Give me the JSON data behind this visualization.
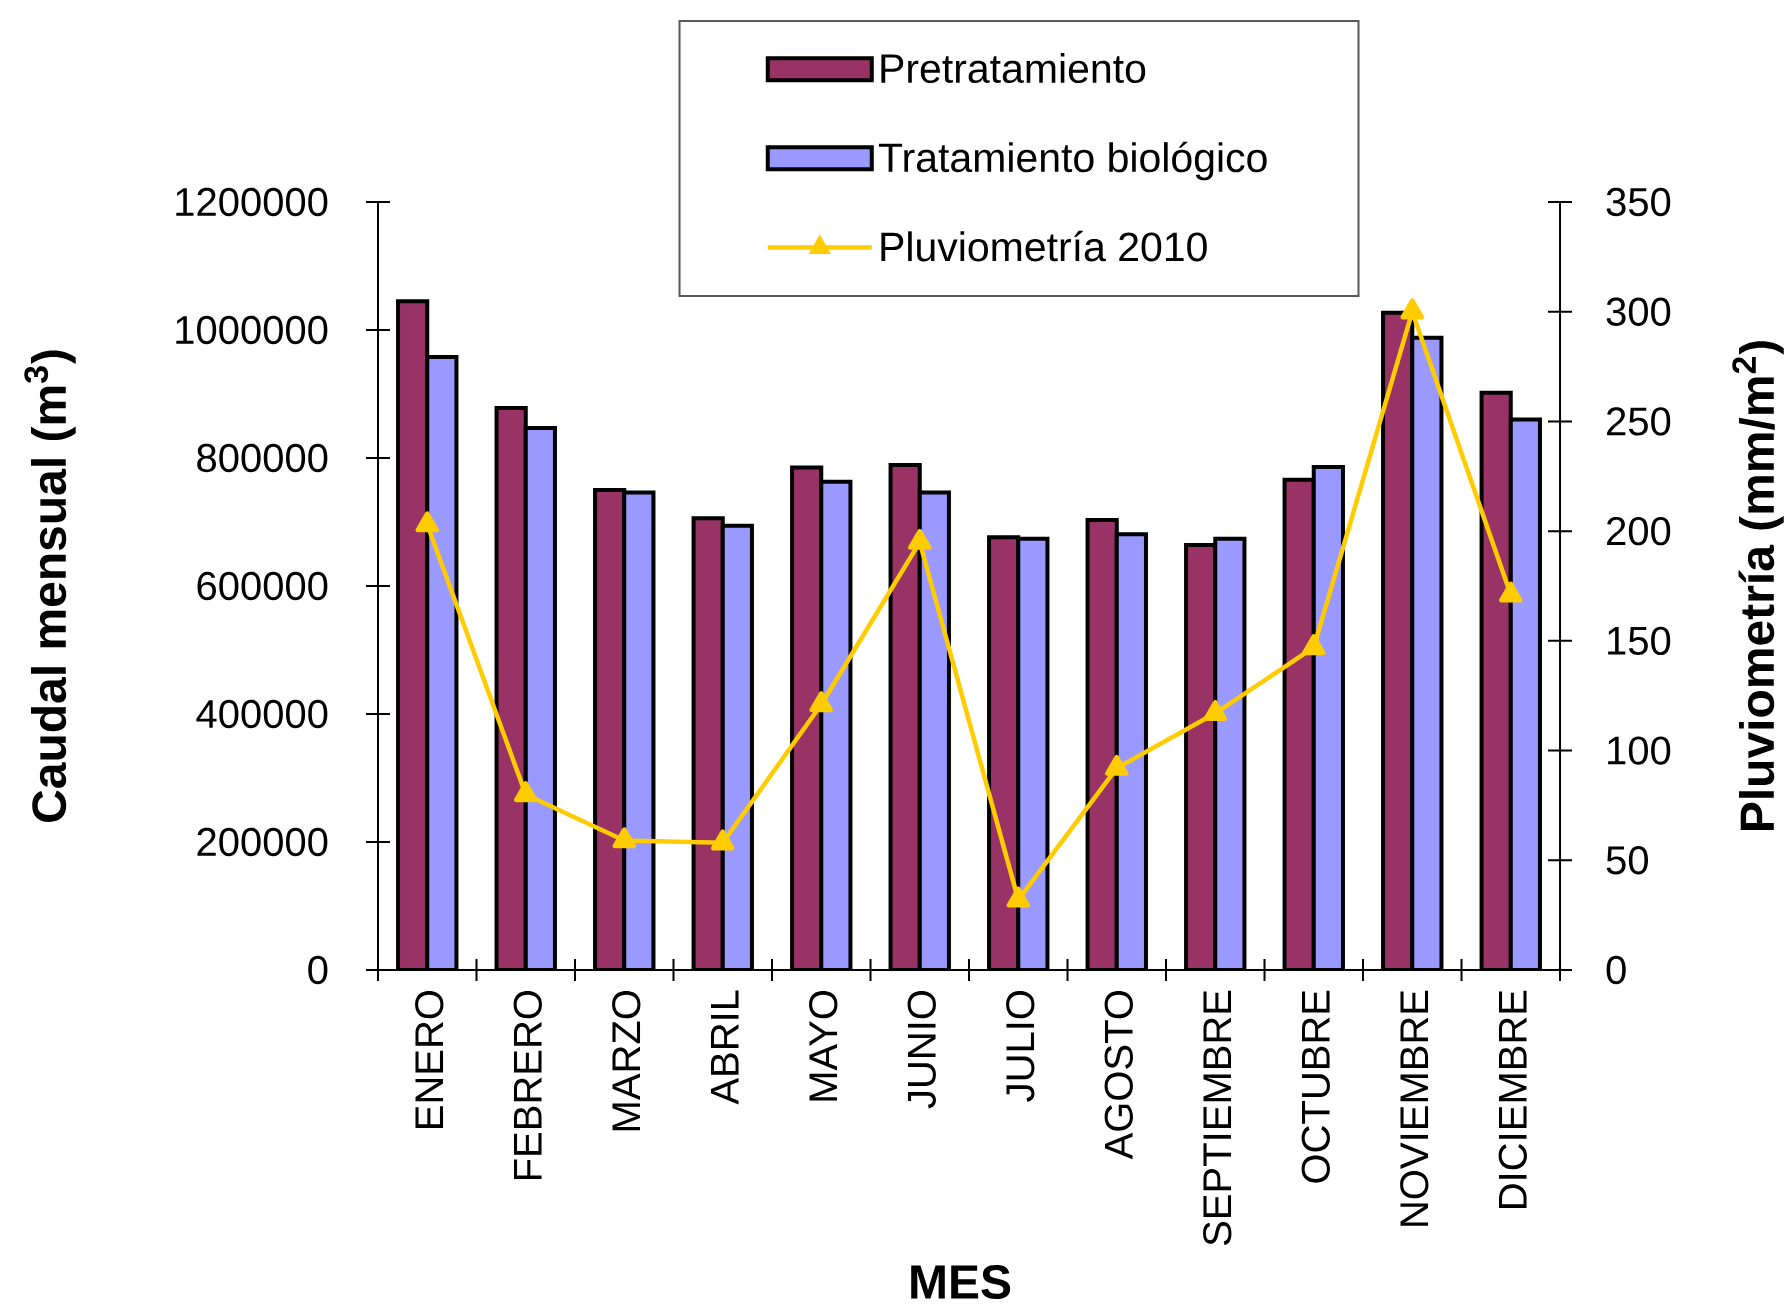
{
  "chart_data": {
    "type": "bar",
    "xlabel": "MES",
    "ylabel": "Caudal mensual (m$^{3}$)",
    "y2label": "Pluviometría (mm/m$^{2}$)",
    "categories": [
      "ENERO",
      "FEBRERO",
      "MARZO",
      "ABRIL",
      "MAYO",
      "JUNIO",
      "JULIO",
      "AGOSTO",
      "SEPTIEMBRE",
      "OCTUBRE",
      "NOVIEMBRE",
      "DICIEMBRE"
    ],
    "series": [
      {
        "name": "Pretratamiento",
        "color": "#993366",
        "values": [
          1045000,
          878000,
          750000,
          706000,
          785000,
          789000,
          676000,
          703000,
          664000,
          766000,
          1027000,
          902000
        ]
      },
      {
        "name": "Tratamiento biológico",
        "color": "#9999ff",
        "values": [
          958000,
          847000,
          746000,
          694000,
          763000,
          746000,
          674000,
          681000,
          674000,
          786000,
          988000,
          860000
        ]
      },
      {
        "name": "Pluviometría 2010",
        "type": "line",
        "axis": "y2",
        "marker": "triangle",
        "color": "#ffcc00",
        "values": [
          203,
          80,
          59,
          58,
          121,
          195,
          32,
          92,
          117,
          147,
          300,
          171
        ]
      }
    ],
    "ylim": [
      0,
      1200000
    ],
    "yticks": [
      0,
      200000,
      400000,
      600000,
      800000,
      1000000,
      1200000
    ],
    "y2lim": [
      0,
      350
    ],
    "y2ticks": [
      0,
      50,
      100,
      150,
      200,
      250,
      300,
      350
    ],
    "legend": "top"
  }
}
